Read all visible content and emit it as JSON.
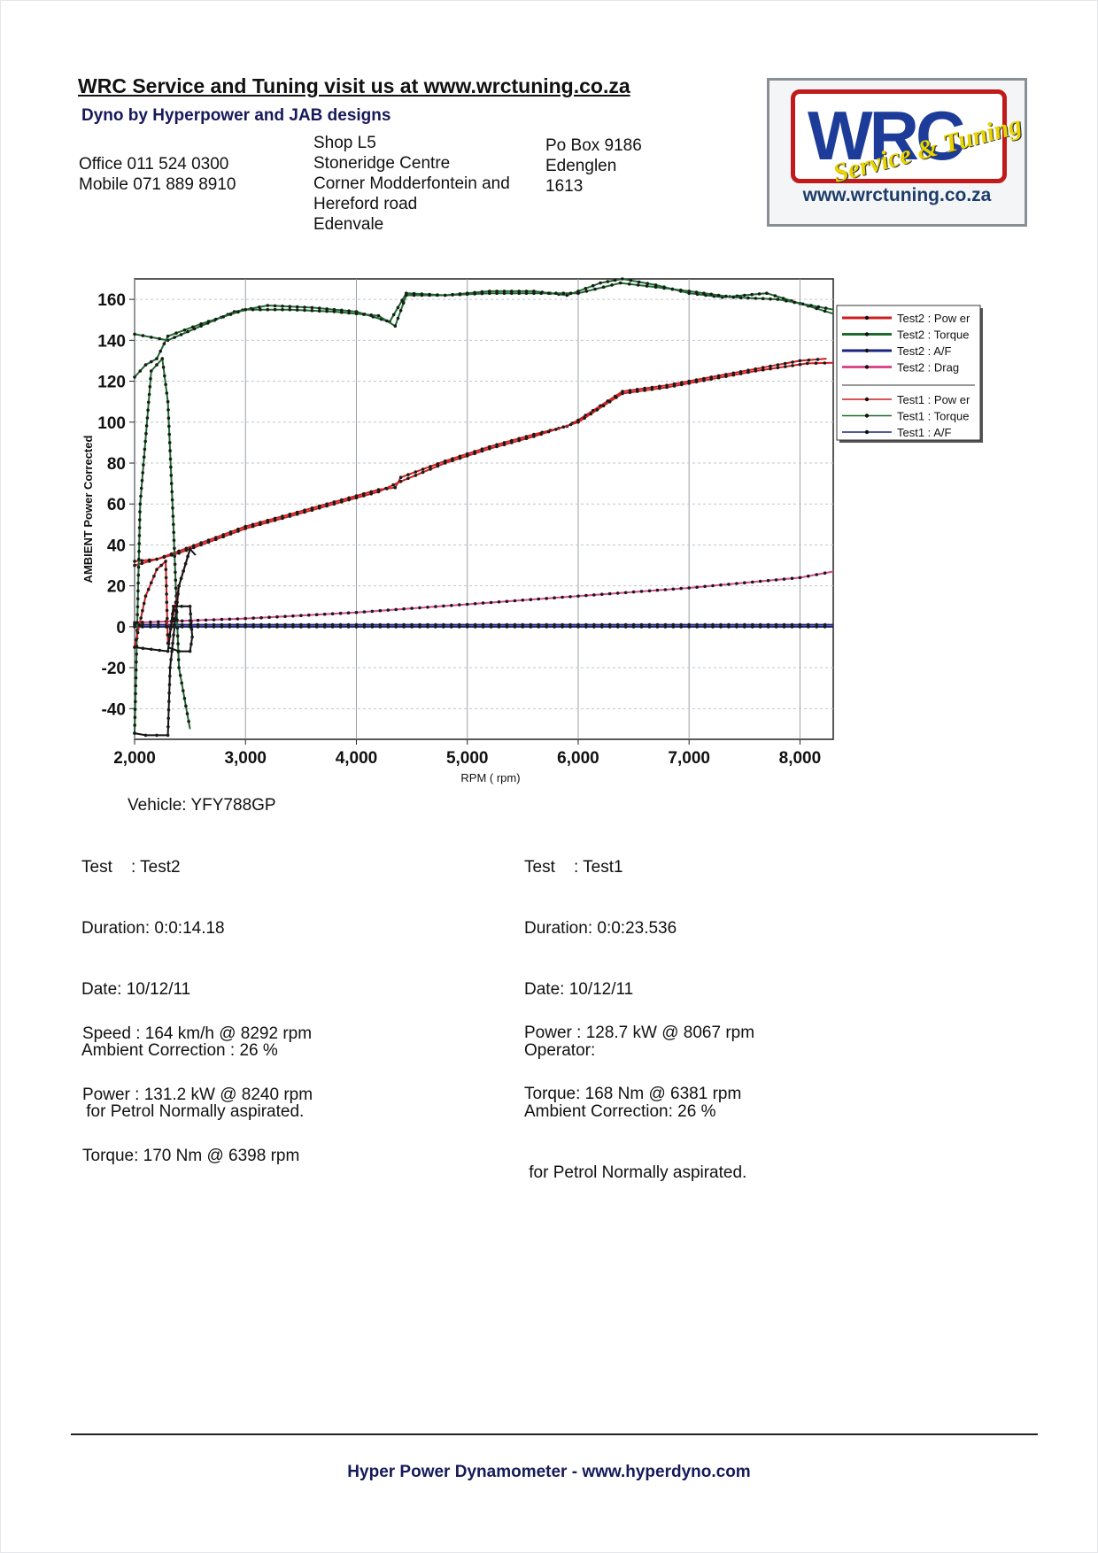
{
  "header": {
    "title": "WRC Service and Tuning visit us at www.wrctuning.co.za",
    "subtitle": "Dyno by Hyperpower and JAB designs",
    "phones": [
      "Office 011 524 0300",
      "Mobile 071 889 8910"
    ],
    "address": [
      "Shop L5",
      "Stoneridge Centre",
      "Corner Modderfontein and",
      "Hereford road",
      "Edenvale"
    ],
    "postal": [
      "Po Box 9186",
      "Edenglen",
      "1613"
    ]
  },
  "logo": {
    "wordmark": "WRC",
    "script": "Service & Tuning",
    "url": "www.wrctuning.co.za"
  },
  "chart_data": {
    "type": "line",
    "xlabel": "RPM ( rpm)",
    "ylabel": "AMBIENT Power Corrected",
    "xlim": [
      2000,
      8300
    ],
    "ylim": [
      -55,
      170
    ],
    "xticks": [
      2000,
      3000,
      4000,
      5000,
      6000,
      7000,
      8000
    ],
    "xtick_labels": [
      "2,000",
      "3,000",
      "4,000",
      "5,000",
      "6,000",
      "7,000",
      "8,000"
    ],
    "yticks": [
      160,
      140,
      120,
      100,
      80,
      60,
      40,
      20,
      0,
      -20,
      -40
    ],
    "ytick_labels": [
      "160",
      "140",
      "120",
      "100",
      "80",
      "60",
      "40",
      "20",
      "0",
      "-20",
      "-40"
    ],
    "grid": true,
    "legend_position": "right",
    "series": [
      {
        "name": "Test2 : Pow er",
        "color": "#cc1f1f",
        "x": [
          2000,
          2200,
          2400,
          2600,
          2800,
          3000,
          3400,
          3800,
          4200,
          4350,
          4400,
          4800,
          5200,
          5600,
          5900,
          6000,
          6200,
          6400,
          6800,
          7200,
          7600,
          8000,
          8240
        ],
        "y": [
          30,
          33,
          37,
          41,
          45,
          49,
          55,
          61,
          67,
          68,
          73,
          81,
          88,
          94,
          98,
          101,
          108,
          115,
          118,
          122,
          126,
          130,
          131
        ]
      },
      {
        "name": "Test2 : Torque",
        "color": "#1f6b2f",
        "x": [
          2000,
          2300,
          2600,
          2900,
          3200,
          3600,
          4000,
          4300,
          4450,
          4800,
          5200,
          5600,
          5900,
          6000,
          6200,
          6398,
          6700,
          7000,
          7300,
          7700,
          8000,
          8300
        ],
        "y": [
          143,
          140,
          147,
          154,
          157,
          156,
          154,
          149,
          163,
          162,
          164,
          164,
          162,
          164,
          168,
          170,
          167,
          163,
          161,
          163,
          158,
          153
        ]
      },
      {
        "name": "Test2 : A/F",
        "color": "#1a237e",
        "x": [
          2000,
          3000,
          4000,
          5000,
          6000,
          7000,
          8000,
          8300
        ],
        "y": [
          0,
          0,
          0,
          0,
          0,
          0,
          0,
          0
        ]
      },
      {
        "name": "Test2 : Drag",
        "color": "#d84a8a",
        "x": [
          2000,
          3000,
          4000,
          5000,
          6000,
          7000,
          8000,
          8300
        ],
        "y": [
          2,
          4,
          7,
          11,
          15,
          19,
          24,
          27
        ]
      },
      {
        "name": "Test1 : Pow er",
        "color": "#cc1f1f",
        "x": [
          2000,
          2200,
          2400,
          2600,
          3000,
          3400,
          3800,
          4200,
          4400,
          4800,
          5200,
          5600,
          6000,
          6400,
          6800,
          7200,
          7600,
          8067,
          8300
        ],
        "y": [
          32,
          33,
          36,
          40,
          48,
          54,
          60,
          66,
          71,
          80,
          87,
          93,
          100,
          114,
          117,
          121,
          125,
          128.7,
          129
        ]
      },
      {
        "name": "Test1 : Torque",
        "color": "#1f6b2f",
        "x": [
          2000,
          2100,
          2200,
          2300,
          2600,
          3000,
          3400,
          3800,
          4200,
          4350,
          4450,
          4800,
          5200,
          5600,
          6000,
          6381,
          6700,
          7000,
          7400,
          7800,
          8100,
          8300
        ],
        "y": [
          122,
          128,
          131,
          142,
          148,
          155,
          155,
          154,
          152,
          147,
          162,
          162,
          163,
          163,
          163,
          168,
          166,
          164,
          161,
          160,
          157,
          155
        ]
      },
      {
        "name": "Test1 : A/F",
        "color": "#1a237e",
        "x": [
          2000,
          3000,
          4000,
          5000,
          6000,
          7000,
          8000,
          8300
        ],
        "y": [
          1,
          1,
          1,
          1,
          1,
          1,
          1,
          1
        ]
      }
    ],
    "transient_series": [
      {
        "color": "#1f6b2f",
        "x": [
          2000,
          2050,
          2150,
          2250,
          2300,
          2350,
          2400,
          2500
        ],
        "y": [
          -52,
          60,
          125,
          131,
          110,
          50,
          -20,
          -50
        ]
      },
      {
        "color": "#cc1f1f",
        "x": [
          2000,
          2100,
          2200,
          2280,
          2300,
          2400,
          2500
        ],
        "y": [
          -10,
          15,
          28,
          32,
          -8,
          20,
          38
        ]
      },
      {
        "color": "#111111",
        "x": [
          2000,
          2300,
          2350,
          2500,
          2520,
          2500,
          2400,
          2300
        ],
        "y": [
          -10,
          -12,
          10,
          10,
          -5,
          -12,
          -12,
          -10
        ]
      },
      {
        "color": "#111111",
        "x": [
          2000,
          2100,
          2200,
          2300,
          2320,
          2400,
          2500,
          2550
        ],
        "y": [
          -52,
          -53,
          -53,
          -53,
          -20,
          20,
          38,
          35
        ]
      }
    ]
  },
  "test2": {
    "vehicle": "Vehicle: YFY788GP",
    "lines": [
      "Test    : Test2",
      "Duration: 0:0:14.18",
      "Date: 10/12/11",
      "Ambient Correction : 26 %",
      " for Petrol Normally aspirated."
    ],
    "results": [
      "Speed : 164 km/h @ 8292 rpm",
      "Power : 131.2 kW @ 8240 rpm",
      "Torque: 170 Nm @ 6398 rpm"
    ]
  },
  "test1": {
    "lines": [
      "Test    : Test1",
      "Duration: 0:0:23.536",
      "Date: 10/12/11",
      "Operator:",
      "Ambient Correction: 26 %",
      " for Petrol Normally aspirated."
    ],
    "results": [
      "Power : 128.7 kW @ 8067 rpm",
      "Torque: 168 Nm @ 6381 rpm"
    ]
  },
  "footer": {
    "text": "Hyper Power Dynamometer  -  www.hyperdyno.com"
  }
}
